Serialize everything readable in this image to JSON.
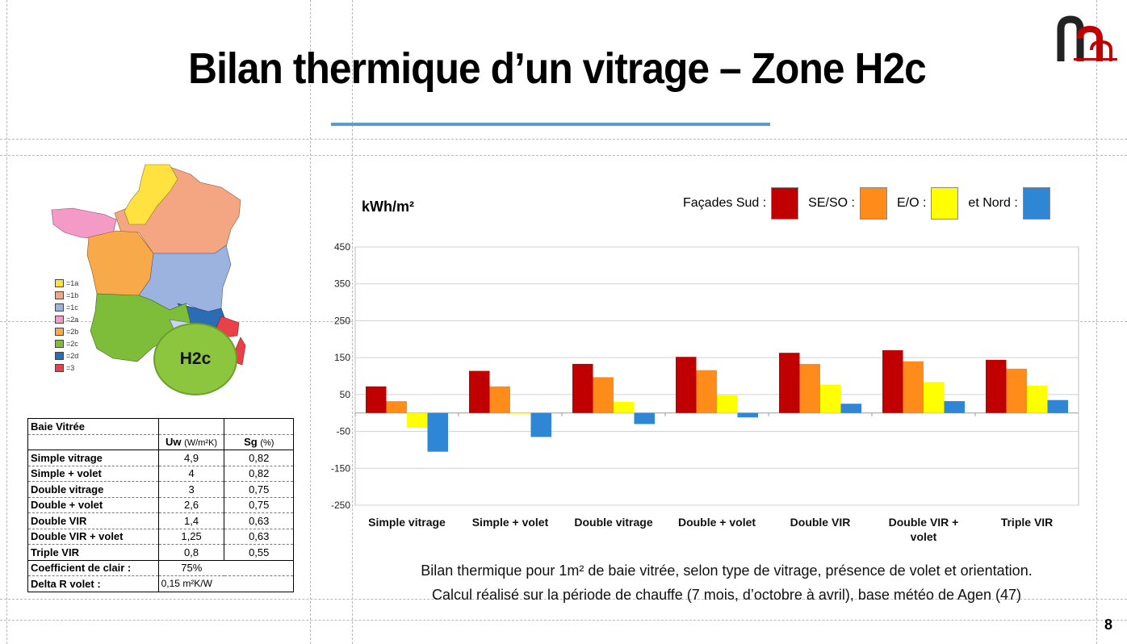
{
  "slide": {
    "title": "Bilan thermique d’un vitrage – Zone H2c",
    "page_number": "8",
    "brand_color": "#c00000"
  },
  "map": {
    "callout": "H2c",
    "legend": [
      {
        "label": "=1a",
        "color": "#ffe23f"
      },
      {
        "label": "=1b",
        "color": "#f4a582"
      },
      {
        "label": "=1c",
        "color": "#9db3df"
      },
      {
        "label": "=2a",
        "color": "#f49ac6"
      },
      {
        "label": "=2b",
        "color": "#f8a94a"
      },
      {
        "label": "=2c",
        "color": "#7dbd3a"
      },
      {
        "label": "=2d",
        "color": "#2a6db5"
      },
      {
        "label": "=3",
        "color": "#e8414a"
      }
    ]
  },
  "table": {
    "title": "Baie Vitrée",
    "col_uw": "Uw",
    "col_uw_unit": "(W/m²K)",
    "col_sg": "Sg",
    "col_sg_unit": "(%)",
    "rows": [
      {
        "name": "Simple vitrage",
        "uw": "4,9",
        "sg": "0,82"
      },
      {
        "name": "Simple + volet",
        "uw": "4",
        "sg": "0,82"
      },
      {
        "name": "Double vitrage",
        "uw": "3",
        "sg": "0,75"
      },
      {
        "name": "Double + volet",
        "uw": "2,6",
        "sg": "0,75"
      },
      {
        "name": "Double VIR",
        "uw": "1,4",
        "sg": "0,63"
      },
      {
        "name": "Double VIR + volet",
        "uw": "1,25",
        "sg": "0,63"
      },
      {
        "name": "Triple VIR",
        "uw": "0,8",
        "sg": "0,55"
      }
    ],
    "coef_label": "Coefficient de clair :",
    "coef_value": "75%",
    "delta_label": "Delta R volet :",
    "delta_value": "0,15 m²K/W"
  },
  "legend": {
    "prefix": "Façades Sud :",
    "items": [
      {
        "label": "SE/SO :",
        "color": "#e8a020"
      }
    ]
  },
  "legend_labels": {
    "sud": "Façades Sud :",
    "se_so": "SE/SO :",
    "e_o": "E/O :",
    "nord": "et Nord :"
  },
  "caption": {
    "line1": "Bilan thermique pour 1m² de baie vitrée, selon type de vitrage, présence de volet et orientation.",
    "line2": "Calcul réalisé sur la période de chauffe (7 mois, d’octobre à avril), base météo de Agen (47)"
  },
  "chart_data": {
    "type": "bar",
    "ylabel": "kWh/m²",
    "ylim": [
      -250,
      450
    ],
    "yticks": [
      450,
      350,
      250,
      150,
      50,
      -50,
      -150,
      -250
    ],
    "grid": true,
    "legend_position": "top-right",
    "categories": [
      "Simple vitrage",
      "Simple + volet",
      "Double vitrage",
      "Double + volet",
      "Double VIR",
      "Double VIR + volet",
      "Triple VIR"
    ],
    "series": [
      {
        "name": "Façades Sud",
        "color": "#c00000",
        "values": [
          72,
          114,
          133,
          152,
          163,
          170,
          144
        ]
      },
      {
        "name": "SE/SO",
        "color": "#ff8c1a",
        "values": [
          32,
          72,
          97,
          116,
          133,
          140,
          120
        ]
      },
      {
        "name": "E/O",
        "color": "#ffff00",
        "values": [
          -40,
          -2,
          30,
          48,
          77,
          84,
          74
        ]
      },
      {
        "name": "et Nord",
        "color": "#2e86d4",
        "values": [
          -105,
          -65,
          -30,
          -12,
          25,
          32,
          35
        ]
      }
    ]
  }
}
